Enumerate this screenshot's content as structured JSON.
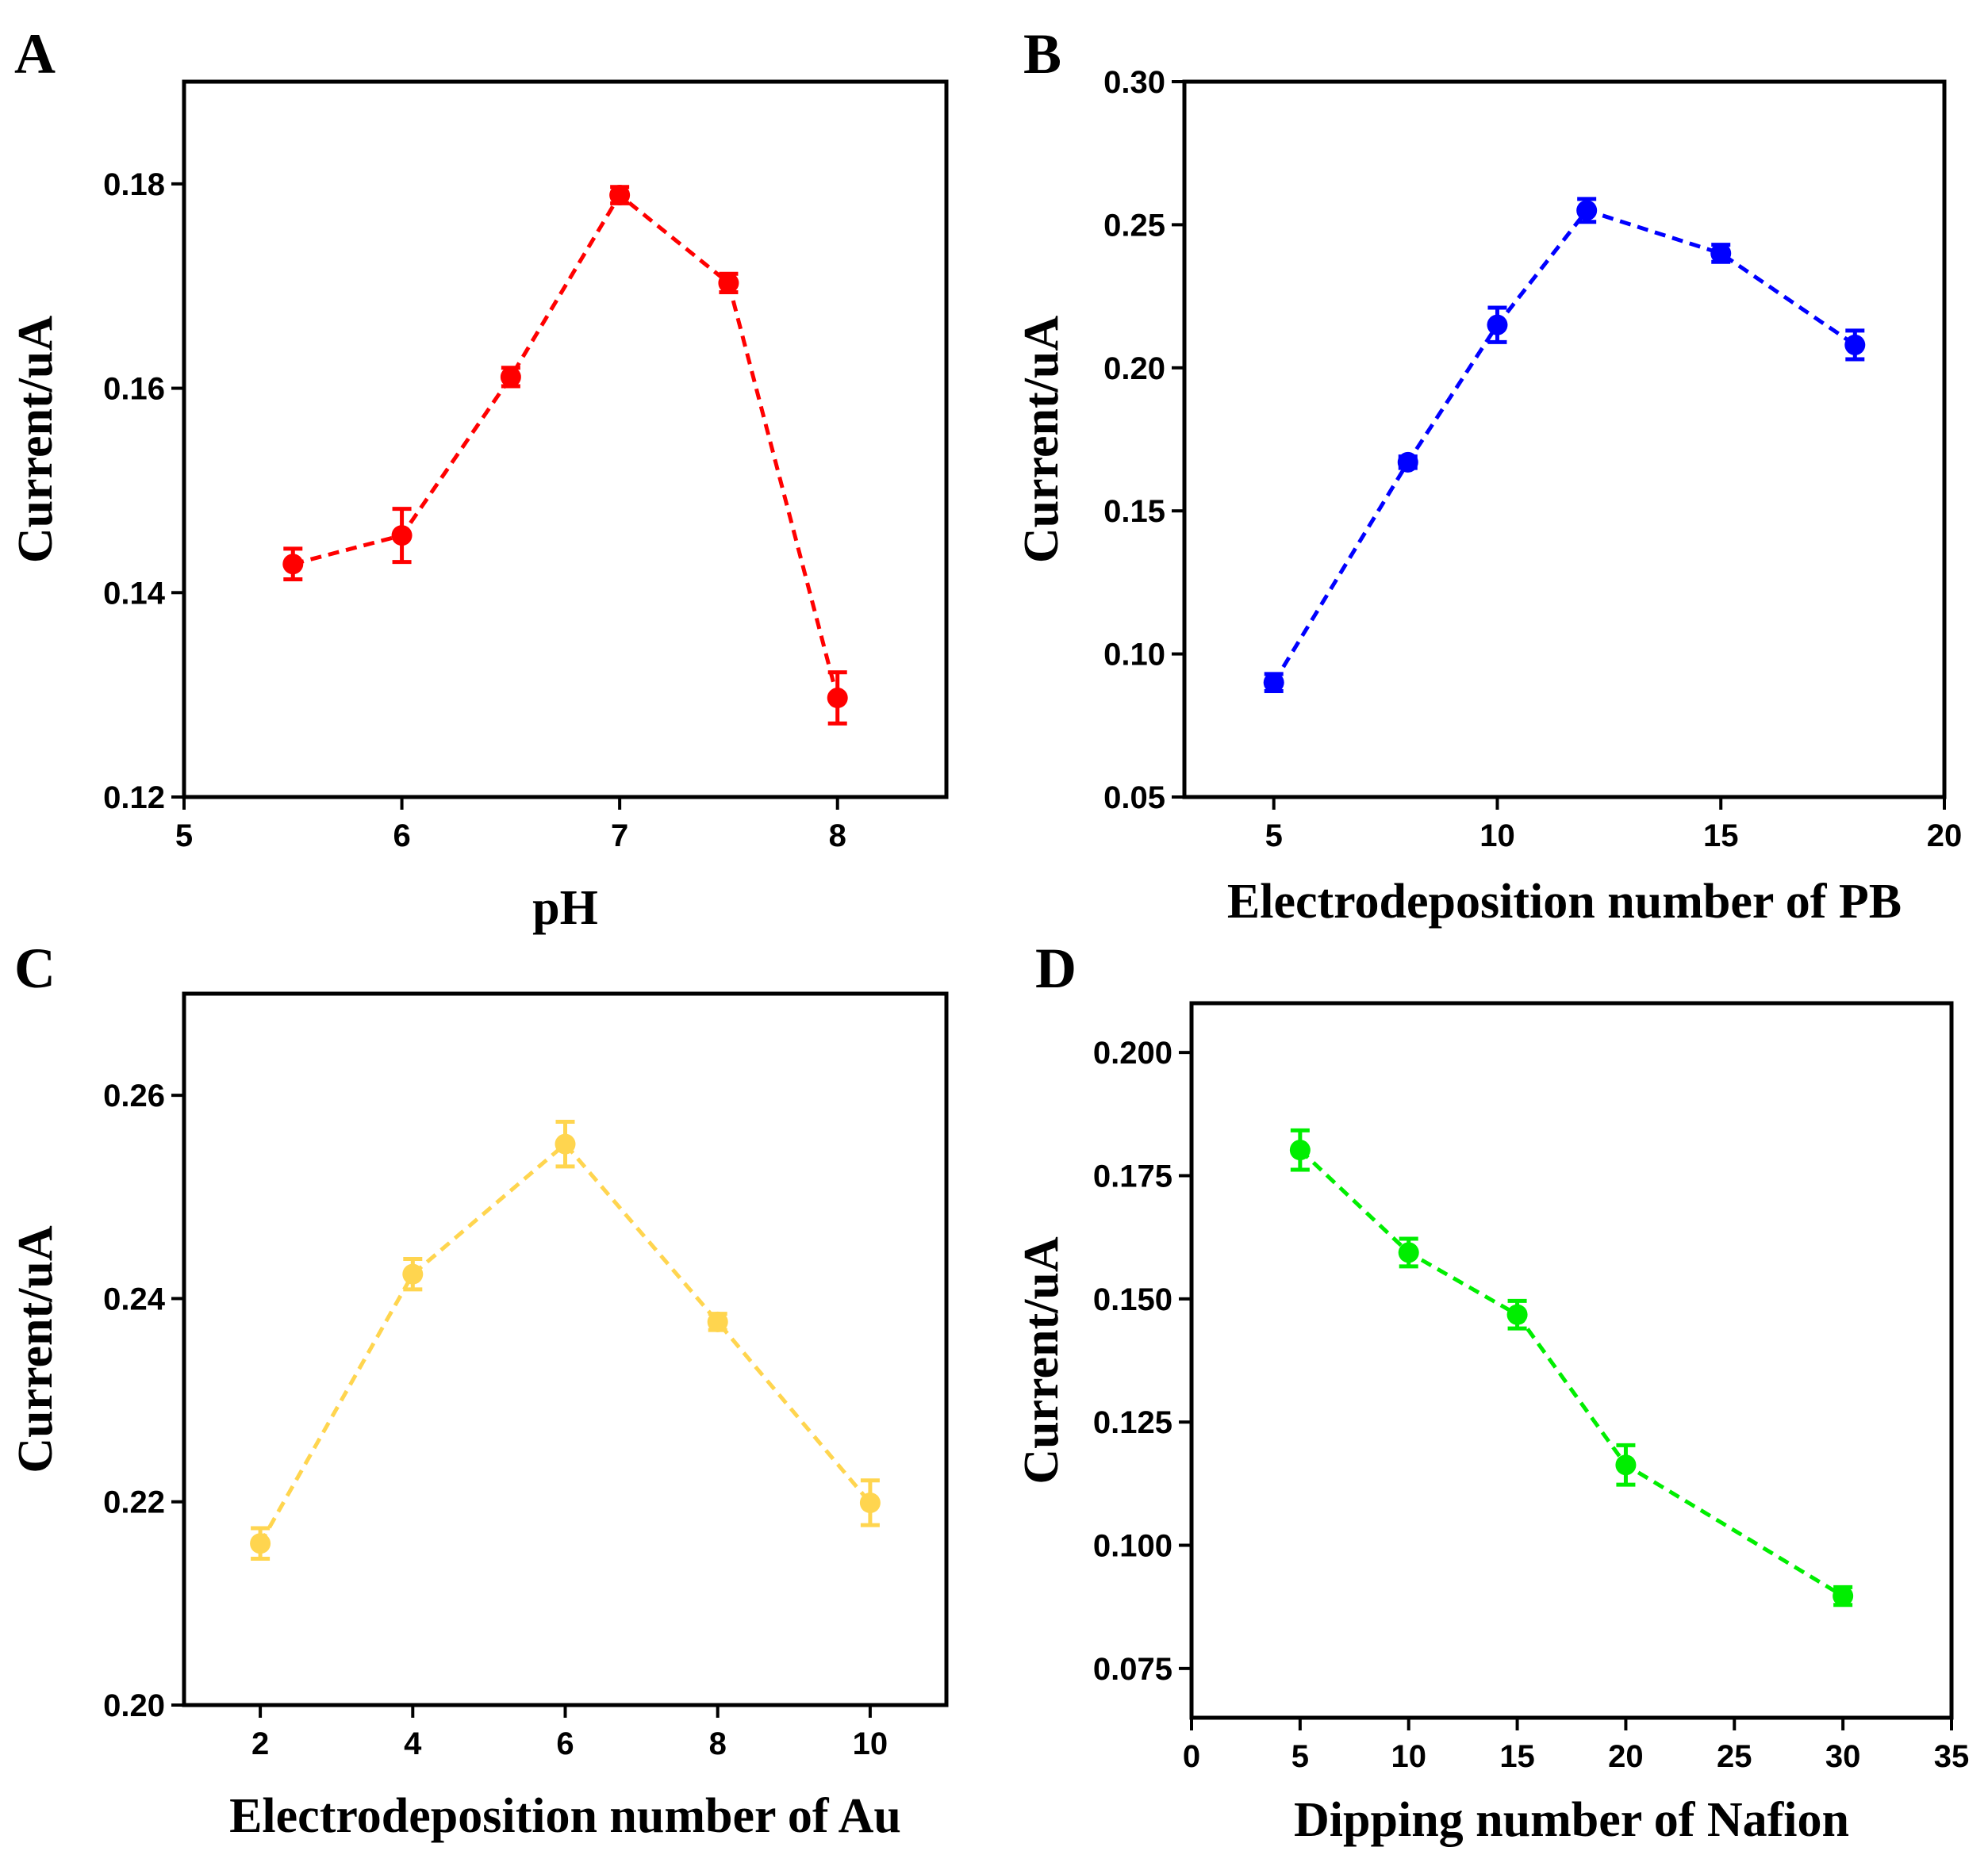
{
  "chart_data": [
    {
      "type": "line",
      "panel": "A",
      "color": "#ff0000",
      "xlabel": "pH",
      "ylabel": "Current/uA",
      "xlim": [
        5,
        8.5
      ],
      "ylim": [
        0.12,
        0.19
      ],
      "xticks": [
        5,
        6,
        7,
        8
      ],
      "xtick_labels": [
        "5",
        "6",
        "7",
        "8"
      ],
      "yticks": [
        0.12,
        0.14,
        0.16,
        0.18
      ],
      "ytick_labels": [
        "0.12",
        "0.14",
        "0.16",
        "0.18"
      ],
      "x": [
        5.5,
        6,
        6.5,
        7,
        7.5,
        8
      ],
      "values": [
        0.1428,
        0.1456,
        0.1611,
        0.1789,
        0.1703,
        0.1297
      ],
      "errors": [
        0.0015,
        0.0026,
        0.0009,
        0.0008,
        0.0009,
        0.0025
      ]
    },
    {
      "type": "line",
      "panel": "B",
      "color": "#0000ff",
      "xlabel": "Electrodeposition number of PB",
      "ylabel": "Current/uA",
      "xlim": [
        3,
        20
      ],
      "ylim": [
        0.05,
        0.3
      ],
      "xticks": [
        5,
        10,
        15,
        20
      ],
      "xtick_labels": [
        "5",
        "10",
        "15",
        "20"
      ],
      "yticks": [
        0.05,
        0.1,
        0.15,
        0.2,
        0.25,
        0.3
      ],
      "ytick_labels": [
        "0.05",
        "0.10",
        "0.15",
        "0.20",
        "0.25",
        "0.30"
      ],
      "x": [
        5,
        8,
        10,
        12,
        15,
        18
      ],
      "values": [
        0.09,
        0.167,
        0.215,
        0.255,
        0.24,
        0.208
      ],
      "errors": [
        0.003,
        0.002,
        0.006,
        0.004,
        0.003,
        0.005
      ]
    },
    {
      "type": "line",
      "panel": "C",
      "color": "#ffd54f",
      "xlabel": "Electrodeposition number of Au",
      "ylabel": "Current/uA",
      "xlim": [
        1,
        11
      ],
      "ylim": [
        0.2,
        0.27
      ],
      "xticks": [
        2,
        4,
        6,
        8,
        10
      ],
      "xtick_labels": [
        "2",
        "4",
        "6",
        "8",
        "10"
      ],
      "yticks": [
        0.2,
        0.22,
        0.24,
        0.26
      ],
      "ytick_labels": [
        "0.20",
        "0.22",
        "0.24",
        "0.26"
      ],
      "x": [
        2,
        4,
        6,
        8,
        10
      ],
      "values": [
        0.2159,
        0.2424,
        0.2552,
        0.2377,
        0.2199
      ],
      "errors": [
        0.0015,
        0.0015,
        0.0022,
        0.0008,
        0.0022
      ]
    },
    {
      "type": "line",
      "panel": "D",
      "color": "#00ee00",
      "xlabel": "Dipping number of Nafion",
      "ylabel": "Current/uA",
      "xlim": [
        0,
        35
      ],
      "ylim": [
        0.065,
        0.21
      ],
      "xticks": [
        0,
        5,
        10,
        15,
        20,
        25,
        30,
        35
      ],
      "xtick_labels": [
        "0",
        "5",
        "10",
        "15",
        "20",
        "25",
        "30",
        "35"
      ],
      "yticks": [
        0.075,
        0.1,
        0.125,
        0.15,
        0.175,
        0.2
      ],
      "ytick_labels": [
        "0.075",
        "0.100",
        "0.125",
        "0.150",
        "0.175",
        "0.200"
      ],
      "x": [
        5,
        10,
        15,
        20,
        30
      ],
      "values": [
        0.1802,
        0.1594,
        0.1468,
        0.1163,
        0.0897
      ],
      "errors": [
        0.004,
        0.0028,
        0.0028,
        0.004,
        0.0018
      ]
    }
  ]
}
